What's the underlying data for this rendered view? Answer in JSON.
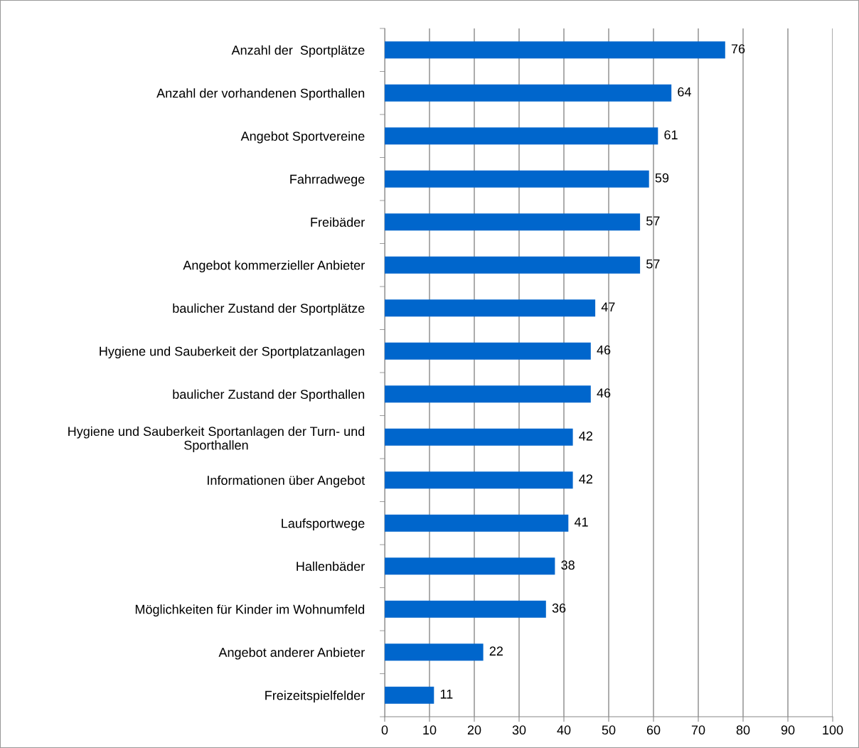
{
  "chart_data": {
    "type": "bar",
    "orientation": "horizontal",
    "categories": [
      "Anzahl der  Sportplätze",
      "Anzahl der vorhandenen Sporthallen",
      "Angebot Sportvereine",
      "Fahrradwege",
      "Freibäder",
      "Angebot kommerzieller Anbieter",
      "baulicher Zustand der Sportplätze",
      "Hygiene und Sauberkeit der Sportplatzanlagen",
      "baulicher Zustand der Sporthallen",
      "Hygiene und Sauberkeit Sportanlagen der Turn- und\nSporthallen",
      "Informationen über Angebot",
      "Laufsportwege",
      "Hallenbäder",
      "Möglichkeiten für Kinder im Wohnumfeld",
      "Angebot anderer Anbieter",
      "Freizeitspielfelder"
    ],
    "values": [
      76,
      64,
      61,
      59,
      57,
      57,
      47,
      46,
      46,
      42,
      42,
      41,
      38,
      36,
      22,
      11
    ],
    "color": "#0066cc",
    "xlim": [
      0,
      100
    ],
    "xticks": [
      0,
      10,
      20,
      30,
      40,
      50,
      60,
      70,
      80,
      90,
      100
    ],
    "grid": "x",
    "legend": false,
    "data_labels": true
  }
}
